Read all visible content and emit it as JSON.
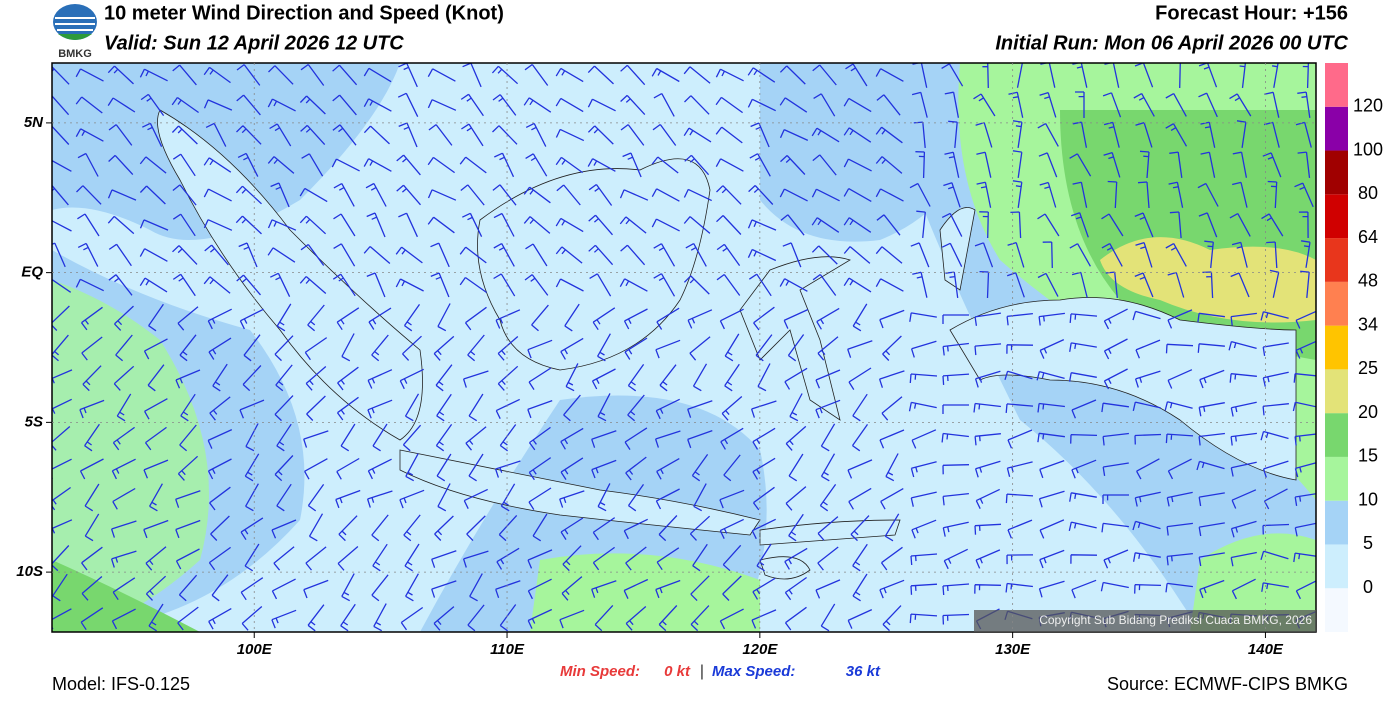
{
  "header": {
    "logo": "BMKG",
    "title": "10 meter Wind Direction and Speed (Knot)",
    "valid": "Valid: Sun 12 April 2026 12 UTC",
    "forecast_hour": "Forecast Hour: +156",
    "initial_run": "Initial Run: Mon 06 April 2026 00 UTC"
  },
  "map": {
    "lonlim": [
      92,
      142
    ],
    "latlim": [
      -12,
      7
    ],
    "lon_ticks": [
      {
        "value": 100,
        "label": "100E"
      },
      {
        "value": 110,
        "label": "110E"
      },
      {
        "value": 120,
        "label": "120E"
      },
      {
        "value": 130,
        "label": "130E"
      },
      {
        "value": 140,
        "label": "140E"
      }
    ],
    "lat_ticks": [
      {
        "value": 5,
        "label": "5N"
      },
      {
        "value": 0,
        "label": "EQ"
      },
      {
        "value": -5,
        "label": "5S"
      },
      {
        "value": -10,
        "label": "10S"
      }
    ],
    "copyright": "Copyright Sub Bidang Prediksi Cuaca BMKG, 2026"
  },
  "colorbar": {
    "levels": [
      0,
      5,
      10,
      15,
      20,
      25,
      34,
      48,
      64,
      80,
      100,
      120
    ],
    "colors": [
      "#f4f9ff",
      "#cdeefd",
      "#a5d3f6",
      "#a6f59c",
      "#78d76e",
      "#e3e378",
      "#ffc400",
      "#ff8050",
      "#e8361c",
      "#d00000",
      "#a00000",
      "#8a00a8",
      "#ff6a8a"
    ]
  },
  "footer": {
    "model": "Model: IFS-0.125",
    "min_label": "Min Speed:",
    "min_value": "0 kt",
    "separator": "|",
    "max_label": "Max Speed:",
    "max_value": "36 kt",
    "source": "Source: ECMWF-CIPS BMKG"
  }
}
